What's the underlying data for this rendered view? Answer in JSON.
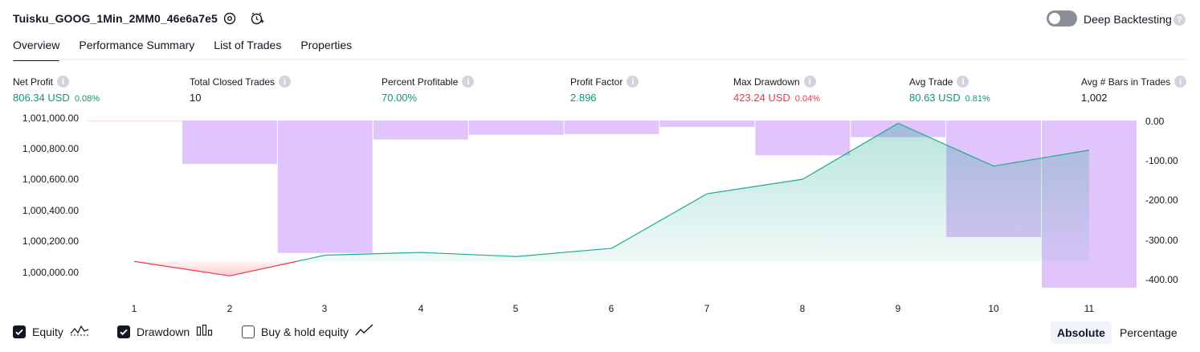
{
  "header": {
    "strategy_name": "Tuisku_GOOG_1Min_2MM0_46e6a7e5",
    "settings_icon": "gear-icon",
    "alert_icon": "alarm-clock-icon",
    "deep_backtesting_label": "Deep Backtesting",
    "deep_backtesting_enabled": false,
    "help_icon": "question-icon"
  },
  "tabs": [
    {
      "label": "Overview",
      "active": true
    },
    {
      "label": "Performance Summary",
      "active": false
    },
    {
      "label": "List of Trades",
      "active": false
    },
    {
      "label": "Properties",
      "active": false
    }
  ],
  "metrics": [
    {
      "label": "Net Profit",
      "value": "806.34 USD",
      "pct": "0.08%",
      "color": "green"
    },
    {
      "label": "Total Closed Trades",
      "value": "10",
      "pct": "",
      "color": "dark"
    },
    {
      "label": "Percent Profitable",
      "value": "70.00%",
      "pct": "",
      "color": "green"
    },
    {
      "label": "Profit Factor",
      "value": "2.896",
      "pct": "",
      "color": "green"
    },
    {
      "label": "Max Drawdown",
      "value": "423.24 USD",
      "pct": "0.04%",
      "color": "red"
    },
    {
      "label": "Avg Trade",
      "value": "80.63 USD",
      "pct": "0.81%",
      "color": "green"
    },
    {
      "label": "Avg # Bars in Trades",
      "value": "1,002",
      "pct": "",
      "color": "dark"
    }
  ],
  "colors": {
    "profit": "#089981",
    "loss": "#f23645",
    "equity_line": "#22ab94",
    "drawdown_bar": "#e1c4fb",
    "text": "#131722"
  },
  "chart_data": {
    "type": "line",
    "x": [
      1,
      2,
      3,
      4,
      5,
      6,
      7,
      8,
      9,
      10,
      11
    ],
    "y_left_ticks": [
      "1,001,000.00",
      "1,000,800.00",
      "1,000,600.00",
      "1,000,400.00",
      "1,000,200.00",
      "1,000,000.00"
    ],
    "y_right_ticks": [
      "0.00",
      "-100.00",
      "-200.00",
      "-300.00",
      "-400.00"
    ],
    "ylim_left": [
      999920,
      1001020
    ],
    "ylim_right": [
      -425,
      0
    ],
    "series": [
      {
        "name": "Equity",
        "axis": "left",
        "values": [
          1000000,
          999895,
          1000045,
          1000065,
          1000035,
          1000095,
          1000490,
          1000595,
          1001000,
          1000690,
          1000806
        ]
      },
      {
        "name": "Drawdown",
        "type": "bar",
        "axis": "right",
        "values": [
          -1,
          -110,
          -335,
          -48,
          -36,
          -34,
          -16,
          -88,
          -42,
          -295,
          -423
        ]
      }
    ]
  },
  "legend": {
    "equity_label": "Equity",
    "equity_checked": true,
    "drawdown_label": "Drawdown",
    "drawdown_checked": true,
    "buyhold_label": "Buy & hold equity",
    "buyhold_checked": false
  },
  "view_toggle": {
    "absolute_label": "Absolute",
    "percentage_label": "Percentage",
    "selected": "Absolute"
  }
}
